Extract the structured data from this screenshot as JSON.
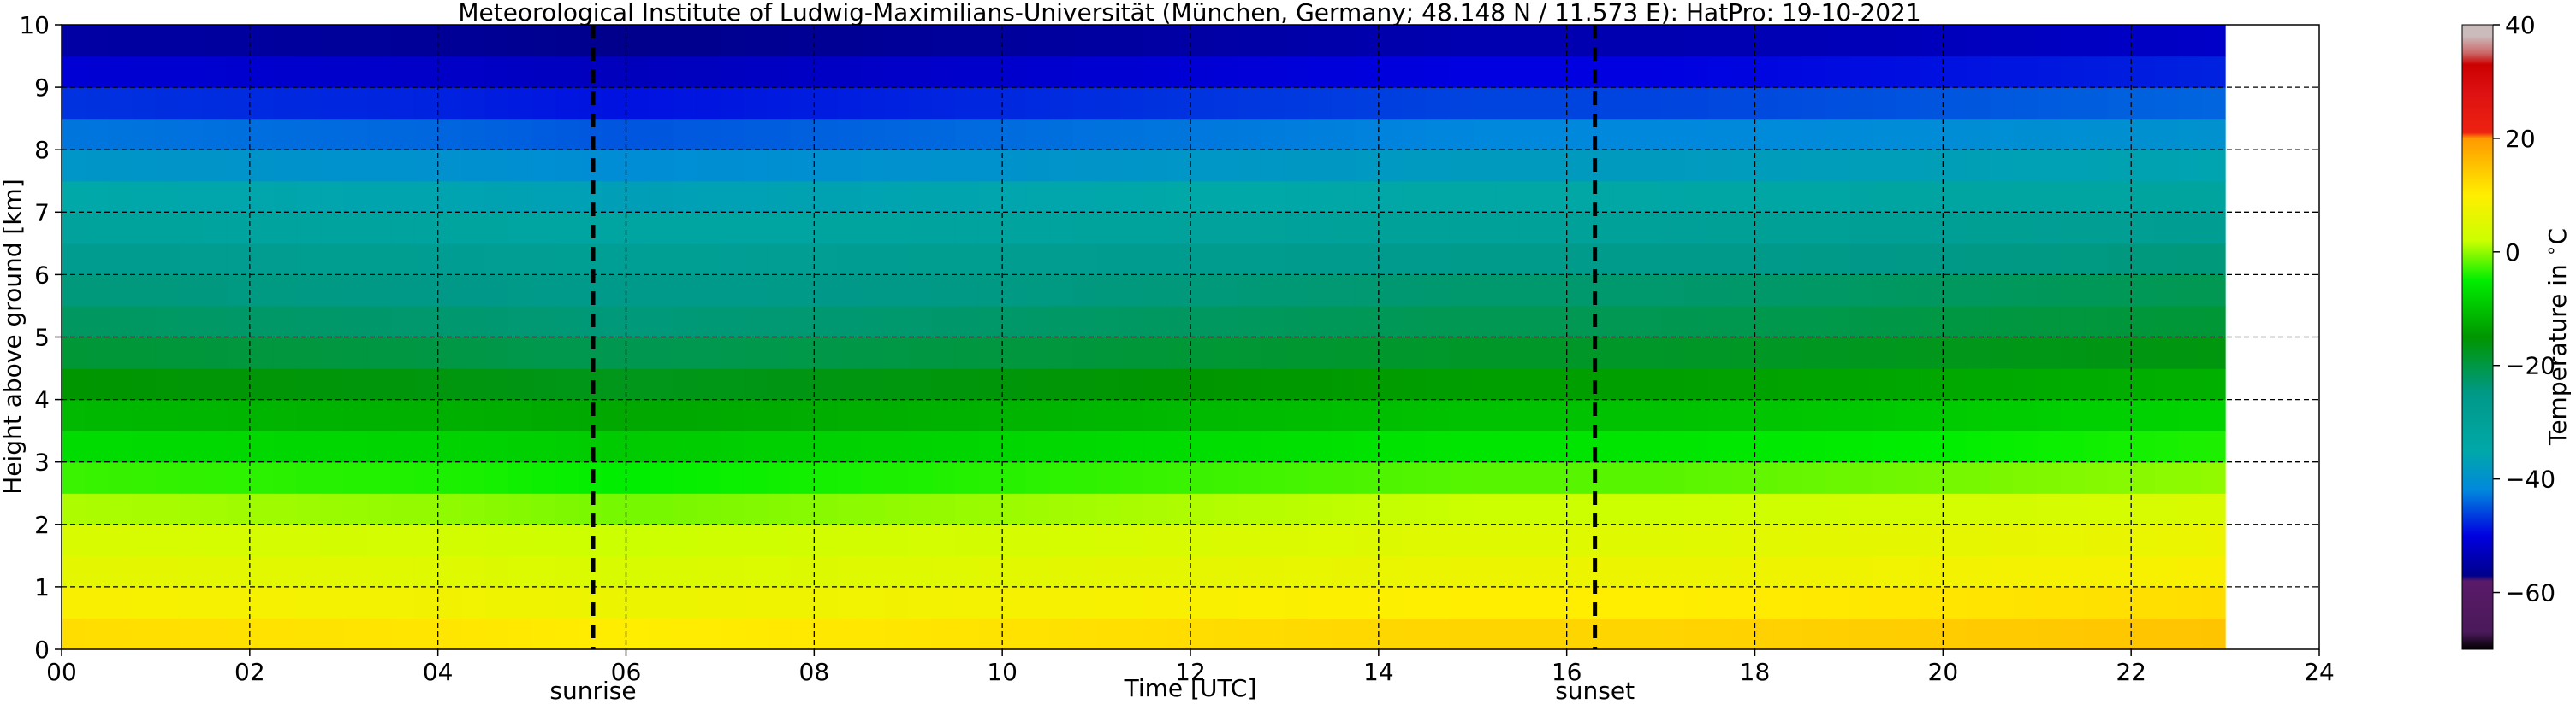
{
  "chart_data": {
    "type": "heatmap",
    "title": "Meteorological Institute of Ludwig-Maximilians-Universität (München, Germany; 48.148 N / 11.573 E):    HatPro: 19-10-2021",
    "xlabel": "Time [UTC]",
    "ylabel": "Height above ground [km]",
    "xlim": [
      0,
      24
    ],
    "ylim": [
      0,
      10
    ],
    "x_ticks": [
      "00",
      "02",
      "04",
      "06",
      "08",
      "10",
      "12",
      "14",
      "16",
      "18",
      "20",
      "22",
      "24"
    ],
    "y_ticks": [
      "0",
      "1",
      "2",
      "3",
      "4",
      "5",
      "6",
      "7",
      "8",
      "9",
      "10"
    ],
    "grid": true,
    "data_end_time": 23.0,
    "height_km": [
      0.25,
      0.75,
      1.25,
      1.75,
      2.25,
      2.75,
      3.25,
      3.75,
      4.25,
      4.75,
      5.25,
      5.75,
      6.25,
      6.75,
      7.25,
      7.75,
      8.25,
      8.75,
      9.25,
      9.75
    ],
    "temperature_profile_c": [
      12,
      9,
      6,
      4,
      1,
      -3,
      -7,
      -11,
      -15,
      -19,
      -22,
      -24,
      -27,
      -31,
      -35,
      -39,
      -43,
      -47,
      -51,
      -55
    ],
    "diurnal_offset_c": [
      {
        "time": 0,
        "offset": 0
      },
      {
        "time": 4,
        "offset": -1
      },
      {
        "time": 6,
        "offset": -2
      },
      {
        "time": 9,
        "offset": -1
      },
      {
        "time": 12,
        "offset": 0
      },
      {
        "time": 15,
        "offset": 1
      },
      {
        "time": 17,
        "offset": 1
      },
      {
        "time": 20,
        "offset": 2
      },
      {
        "time": 23,
        "offset": 3
      }
    ],
    "events": [
      {
        "label": "sunrise",
        "time": 5.65
      },
      {
        "label": "sunset",
        "time": 16.3
      }
    ],
    "colorbar": {
      "label": "Temperature in $^\\circ$C",
      "range": [
        -70,
        40
      ],
      "ticks": [
        "40",
        "20",
        "0",
        "−20",
        "−40",
        "−60"
      ],
      "tick_values": [
        40,
        20,
        0,
        -20,
        -40,
        -60
      ],
      "stops": [
        {
          "value": -70,
          "color": "#000000"
        },
        {
          "value": -67,
          "color": "#4a1a5a"
        },
        {
          "value": -58,
          "color": "#5a1a68"
        },
        {
          "value": -57,
          "color": "#00008c"
        },
        {
          "value": -50,
          "color": "#0000e0"
        },
        {
          "value": -42,
          "color": "#0088dd"
        },
        {
          "value": -35,
          "color": "#00a8a8"
        },
        {
          "value": -25,
          "color": "#009988"
        },
        {
          "value": -15,
          "color": "#009600"
        },
        {
          "value": -5,
          "color": "#00ee00"
        },
        {
          "value": 2,
          "color": "#ccff00"
        },
        {
          "value": 10,
          "color": "#ffee00"
        },
        {
          "value": 18,
          "color": "#ffaa00"
        },
        {
          "value": 20,
          "color": "#ff9900"
        },
        {
          "value": 21,
          "color": "#ee2211"
        },
        {
          "value": 28,
          "color": "#dd1111"
        },
        {
          "value": 33,
          "color": "#cc0000"
        },
        {
          "value": 35,
          "color": "#cc6666"
        },
        {
          "value": 38,
          "color": "#ccbbbb"
        },
        {
          "value": 40,
          "color": "#ccbbbb"
        }
      ]
    }
  }
}
